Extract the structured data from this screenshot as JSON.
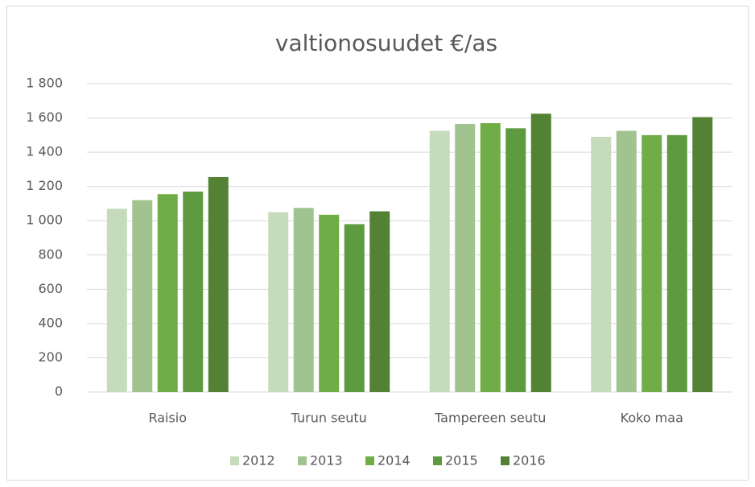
{
  "chart_data": {
    "type": "bar",
    "title": "valtionosuudet €/as",
    "categories": [
      "Raisio",
      "Turun seutu",
      "Tampereen seutu",
      "Koko maa"
    ],
    "series": [
      {
        "name": "2012",
        "color": "#c5dbbc",
        "values": [
          1070,
          1050,
          1525,
          1490
        ]
      },
      {
        "name": "2013",
        "color": "#a1c38f",
        "values": [
          1120,
          1075,
          1565,
          1525
        ]
      },
      {
        "name": "2014",
        "color": "#70ad47",
        "values": [
          1155,
          1035,
          1570,
          1500
        ]
      },
      {
        "name": "2015",
        "color": "#5e9a40",
        "values": [
          1170,
          980,
          1540,
          1500
        ]
      },
      {
        "name": "2016",
        "color": "#548235",
        "values": [
          1255,
          1055,
          1625,
          1605
        ]
      }
    ],
    "ylim": [
      0,
      1800
    ],
    "yticks": [
      0,
      200,
      400,
      600,
      800,
      {
        "value": 1000,
        "label": "1 000"
      },
      {
        "value": 1200,
        "label": "1 200"
      },
      {
        "value": 1400,
        "label": "1 400"
      },
      {
        "value": 1600,
        "label": "1 600"
      },
      {
        "value": 1800,
        "label": "1 800"
      }
    ],
    "grid": true,
    "legend": "bottom"
  }
}
